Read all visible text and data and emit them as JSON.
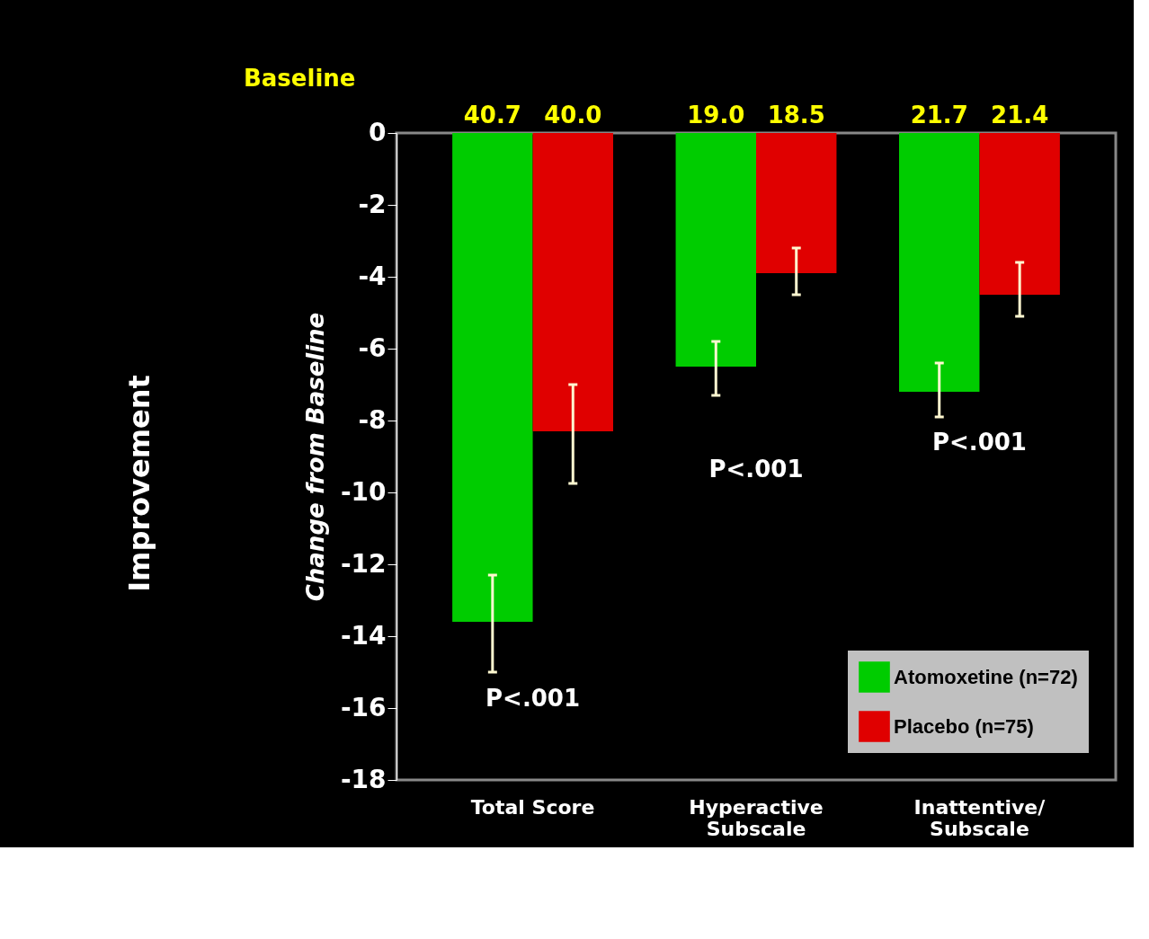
{
  "chart_data": {
    "type": "bar",
    "ylabel": "Change from Baseline",
    "categories": [
      "Total Score",
      "Hyperactive\nSubscale",
      "Inattentive/\nSubscale"
    ],
    "series": [
      {
        "name": "Atomoxetine (n=72)",
        "color": "#00cc00",
        "values": [
          -13.6,
          -6.5,
          -7.2
        ],
        "errors": [
          [
            -15.0,
            -12.3
          ],
          [
            -7.3,
            -5.8
          ],
          [
            -7.9,
            -6.4
          ]
        ]
      },
      {
        "name": "Placebo (n=75)",
        "color": "#e00000",
        "values": [
          -8.3,
          -3.9,
          -4.5
        ],
        "errors": [
          [
            -9.75,
            -7.0
          ],
          [
            -4.5,
            -3.2
          ],
          [
            -5.1,
            -3.6
          ]
        ]
      }
    ],
    "ylim": [
      -18,
      0
    ],
    "yticks": [
      -18,
      -16,
      -14,
      -12,
      -10,
      -8,
      -6,
      -4,
      -2,
      0
    ],
    "grid": false,
    "legend": "bottom right",
    "annotations": [
      "Baseline",
      "Improvement",
      {
        "text": "40.7",
        "x": "Total Score",
        "y": 0
      },
      {
        "text": "40.0",
        "x": "Total Score",
        "y": 0
      },
      {
        "text": "19.0",
        "x": "Hyperactive\nSubscale",
        "y": 0
      },
      {
        "text": "18.5",
        "x": "Hyperactive\nSubscale",
        "y": 0
      },
      {
        "text": "21.7",
        "x": "Inattentive/\nSubscale",
        "y": 0
      },
      {
        "text": "21.4",
        "x": "Inattentive/\nSubscale",
        "y": 0
      },
      "P<.001",
      "P<.001",
      "P<.001"
    ]
  }
}
